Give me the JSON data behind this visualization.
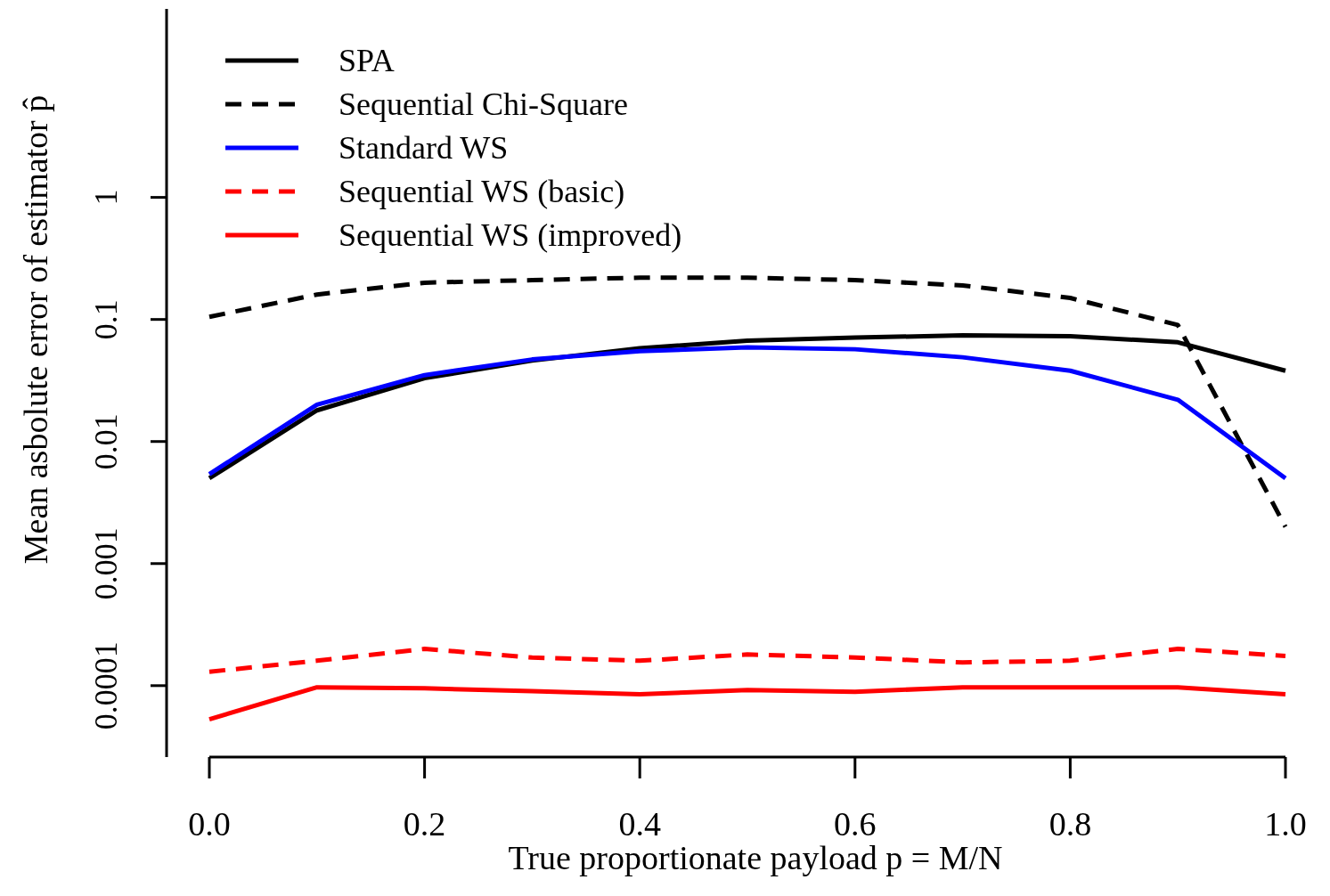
{
  "chart_data": {
    "type": "line",
    "xlabel": "True proportionate payload  p = M/N",
    "ylabel": "Mean asbolute error of estimator p̂",
    "log": "y",
    "grid": false,
    "legend": "top left",
    "marker": "none",
    "x": [
      0,
      0.1,
      0.2,
      0.3,
      0.4,
      0.5,
      0.6,
      0.7,
      0.8,
      0.9,
      1.0
    ],
    "xlim": [
      0,
      1
    ],
    "xticks": [
      {
        "value": 0,
        "label": "0.0"
      },
      0.2,
      0.4,
      0.6,
      0.8,
      {
        "value": 1,
        "label": "1.0"
      }
    ],
    "ylim": [
      2.6e-05,
      35
    ],
    "yticks": [
      0.0001,
      0.001,
      0.01,
      0.1,
      1
    ],
    "series": [
      {
        "name": "SPA",
        "color": "#000000",
        "line_style": "solid",
        "values": [
          0.005,
          0.018,
          0.033,
          0.046,
          0.058,
          0.067,
          0.071,
          0.074,
          0.073,
          0.065,
          0.038
        ]
      },
      {
        "name": "Sequential Chi-Square",
        "color": "#000000",
        "line_style": "dashed",
        "values": [
          0.105,
          0.16,
          0.2,
          0.21,
          0.22,
          0.22,
          0.21,
          0.19,
          0.15,
          0.09,
          0.002
        ]
      },
      {
        "name": "Standard WS",
        "color": "#0000ff",
        "line_style": "solid",
        "values": [
          0.0054,
          0.02,
          0.035,
          0.047,
          0.055,
          0.059,
          0.057,
          0.049,
          0.038,
          0.022,
          0.005
        ]
      },
      {
        "name": "Sequential WS (basic)",
        "color": "#ff0000",
        "line_style": "dashed",
        "values": [
          0.00013,
          0.00016,
          0.0002,
          0.00017,
          0.00016,
          0.00018,
          0.00017,
          0.000155,
          0.00016,
          0.0002,
          0.000175
        ]
      },
      {
        "name": "Sequential WS (improved)",
        "color": "#ff0000",
        "line_style": "solid",
        "values": [
          5.3e-05,
          9.7e-05,
          9.5e-05,
          9e-05,
          8.5e-05,
          9.2e-05,
          8.9e-05,
          9.7e-05,
          9.7e-05,
          9.7e-05,
          8.5e-05
        ]
      }
    ]
  }
}
